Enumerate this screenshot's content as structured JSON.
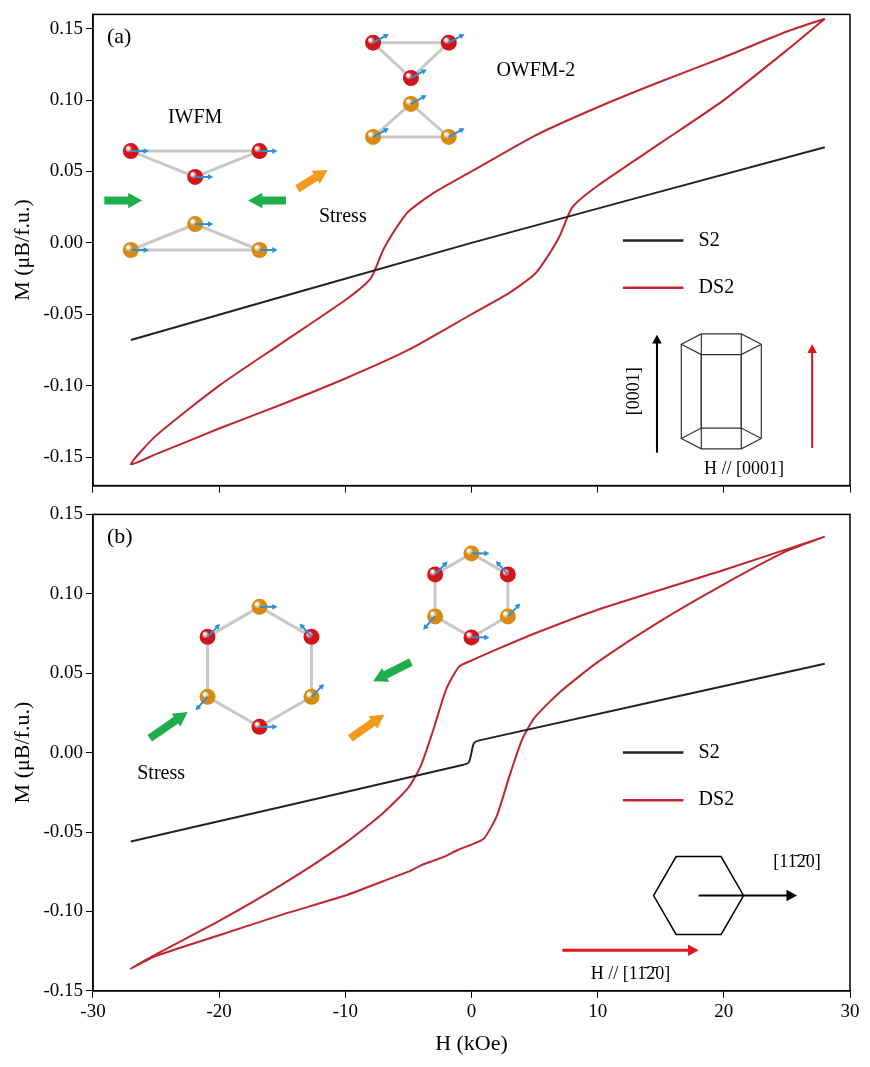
{
  "chart_data": [
    {
      "type": "line",
      "title": "(a)",
      "y_label": "M (μB/f.u.)",
      "xlim": [
        -30,
        30
      ],
      "xticks": [
        -30,
        -20,
        -10,
        0,
        10,
        20,
        30
      ],
      "ylim": [
        -0.17,
        0.16
      ],
      "yticks": [
        -0.15,
        {
          "value": -0.1,
          "label": "-0.10"
        },
        -0.05,
        {
          "value": 0,
          "label": "0.00"
        },
        0.05,
        {
          "value": 0.1,
          "label": "0.10"
        },
        0.15
      ],
      "tick_labels": "y",
      "legend": "right",
      "annotations": [
        "IWFM",
        "OWFM-2",
        "Stress",
        "[0001]",
        "H // [0001]"
      ],
      "series": [
        {
          "name": "S2",
          "color": "#222222",
          "x": [
            -27,
            0,
            28
          ],
          "values": [
            -0.068,
            0,
            0.067
          ]
        },
        {
          "name": "DS2",
          "color": "#c0272d",
          "x": [
            28,
            25,
            20,
            15,
            10,
            5,
            0,
            -3,
            -5,
            -6,
            -7,
            -8,
            -10,
            -15,
            -20,
            -25,
            -27,
            -25,
            -20,
            -15,
            -10,
            -5,
            0,
            3,
            5,
            6,
            7,
            8,
            10,
            15,
            20,
            25,
            28
          ],
          "values": [
            0.157,
            0.148,
            0.13,
            0.113,
            0.095,
            0.075,
            0.05,
            0.035,
            0.022,
            0.01,
            -0.005,
            -0.025,
            -0.04,
            -0.07,
            -0.1,
            -0.135,
            -0.155,
            -0.148,
            -0.13,
            -0.113,
            -0.095,
            -0.075,
            -0.05,
            -0.035,
            -0.022,
            -0.01,
            0.005,
            0.025,
            0.04,
            0.07,
            0.1,
            0.135,
            0.157
          ]
        }
      ]
    },
    {
      "type": "line",
      "title": "(b)",
      "x_label": "H (kOe)",
      "y_label": "M (μB/f.u.)",
      "xlim": [
        -30,
        30
      ],
      "xticks": [
        -30,
        -20,
        -10,
        0,
        10,
        20,
        30
      ],
      "ylim": [
        -0.15,
        0.15
      ],
      "yticks": [
        -0.15,
        {
          "value": -0.1,
          "label": "-0.10"
        },
        -0.05,
        {
          "value": 0,
          "label": "0.00"
        },
        0.05,
        {
          "value": 0.1,
          "label": "0.10"
        },
        0.15
      ],
      "legend": "right",
      "annotations": [
        "Stress",
        "[11̄2̄0]",
        "H // [11̄2̄0]"
      ],
      "series": [
        {
          "name": "S2",
          "color": "#222222",
          "x": [
            -27,
            -0.8,
            -0.2,
            0.2,
            0.8,
            28
          ],
          "values": [
            -0.056,
            -0.008,
            -0.006,
            0.006,
            0.008,
            0.056
          ]
        },
        {
          "name": "DS2",
          "color": "#c0272d",
          "x": [
            28,
            20,
            10,
            5,
            2,
            0,
            -1,
            -2,
            -3,
            -4,
            -5,
            -7,
            -10,
            -15,
            -20,
            -25,
            -27,
            -25,
            -20,
            -15,
            -10,
            -7,
            -5,
            -4,
            -3,
            -2,
            -1,
            0,
            1,
            2,
            3,
            4,
            5,
            7,
            10,
            15,
            20,
            25,
            28
          ],
          "values": [
            0.136,
            0.115,
            0.09,
            0.075,
            0.065,
            0.058,
            0.054,
            0.04,
            0.015,
            -0.008,
            -0.022,
            -0.038,
            -0.057,
            -0.083,
            -0.106,
            -0.127,
            -0.136,
            -0.128,
            -0.115,
            -0.102,
            -0.09,
            -0.081,
            -0.075,
            -0.071,
            -0.068,
            -0.065,
            -0.061,
            -0.058,
            -0.054,
            -0.04,
            -0.015,
            0.008,
            0.022,
            0.038,
            0.057,
            0.083,
            0.106,
            0.127,
            0.136
          ]
        }
      ]
    }
  ]
}
